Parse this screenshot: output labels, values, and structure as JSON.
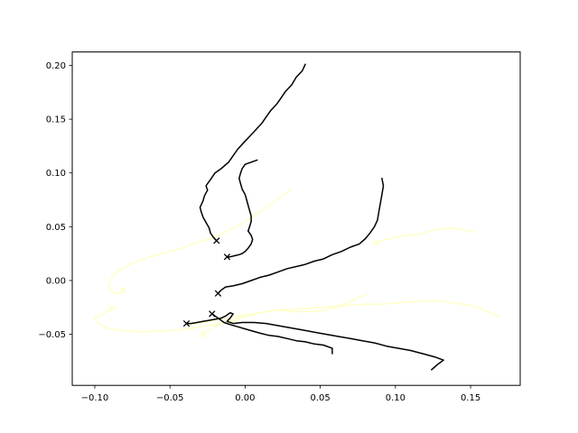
{
  "chart_data": {
    "type": "line",
    "title": "",
    "xlabel": "",
    "ylabel": "",
    "xlim": [
      -0.115,
      0.183
    ],
    "ylim": [
      -0.0975,
      0.2125
    ],
    "grid": false,
    "x_ticks": [
      -0.1,
      -0.05,
      0.0,
      0.05,
      0.1,
      0.15
    ],
    "x_tick_labels": [
      "−0.10",
      "−0.05",
      "0.00",
      "0.05",
      "0.10",
      "0.15"
    ],
    "y_ticks": [
      -0.05,
      0.0,
      0.05,
      0.1,
      0.15,
      0.2
    ],
    "y_tick_labels": [
      "−0.05",
      "0.00",
      "0.05",
      "0.10",
      "0.15",
      "0.20"
    ],
    "colors": {
      "dark": "#000000",
      "light": "#ffffc8",
      "axes": "#000000",
      "background": "#ffffff"
    },
    "series": [
      {
        "color": "dark",
        "end_marker": "x",
        "points": [
          [
            0.04,
            0.201
          ],
          [
            0.038,
            0.195
          ],
          [
            0.034,
            0.189
          ],
          [
            0.031,
            0.182
          ],
          [
            0.027,
            0.176
          ],
          [
            0.024,
            0.17
          ],
          [
            0.021,
            0.164
          ],
          [
            0.017,
            0.158
          ],
          [
            0.014,
            0.152
          ],
          [
            0.011,
            0.146
          ],
          [
            0.007,
            0.14
          ],
          [
            0.003,
            0.134
          ],
          [
            -0.001,
            0.128
          ],
          [
            -0.005,
            0.122
          ],
          [
            -0.008,
            0.116
          ],
          [
            -0.011,
            0.11
          ],
          [
            -0.016,
            0.104
          ],
          [
            -0.02,
            0.1
          ],
          [
            -0.023,
            0.094
          ],
          [
            -0.026,
            0.088
          ],
          [
            -0.025,
            0.084
          ],
          [
            -0.027,
            0.079
          ],
          [
            -0.028,
            0.074
          ],
          [
            -0.03,
            0.068
          ],
          [
            -0.029,
            0.063
          ],
          [
            -0.028,
            0.059
          ],
          [
            -0.026,
            0.054
          ],
          [
            -0.024,
            0.049
          ],
          [
            -0.023,
            0.044
          ],
          [
            -0.021,
            0.04
          ],
          [
            -0.019,
            0.037
          ]
        ]
      },
      {
        "color": "dark",
        "end_marker": "x",
        "points": [
          [
            0.008,
            0.112
          ],
          [
            0.004,
            0.11
          ],
          [
            0.0,
            0.108
          ],
          [
            -0.002,
            0.104
          ],
          [
            -0.003,
            0.1
          ],
          [
            -0.004,
            0.095
          ],
          [
            -0.003,
            0.09
          ],
          [
            -0.002,
            0.085
          ],
          [
            0.0,
            0.08
          ],
          [
            0.001,
            0.075
          ],
          [
            0.002,
            0.07
          ],
          [
            0.003,
            0.065
          ],
          [
            0.004,
            0.06
          ],
          [
            0.004,
            0.055
          ],
          [
            0.003,
            0.05
          ],
          [
            0.002,
            0.046
          ],
          [
            0.004,
            0.042
          ],
          [
            0.005,
            0.038
          ],
          [
            0.004,
            0.034
          ],
          [
            0.002,
            0.03
          ],
          [
            0.0,
            0.027
          ],
          [
            -0.002,
            0.025
          ],
          [
            -0.004,
            0.024
          ],
          [
            -0.007,
            0.023
          ],
          [
            -0.01,
            0.022
          ],
          [
            -0.012,
            0.022
          ]
        ]
      },
      {
        "color": "dark",
        "end_marker": "x",
        "points": [
          [
            0.091,
            0.095
          ],
          [
            0.092,
            0.088
          ],
          [
            0.091,
            0.08
          ],
          [
            0.09,
            0.072
          ],
          [
            0.089,
            0.064
          ],
          [
            0.088,
            0.056
          ],
          [
            0.086,
            0.05
          ],
          [
            0.083,
            0.044
          ],
          [
            0.08,
            0.039
          ],
          [
            0.076,
            0.034
          ],
          [
            0.07,
            0.031
          ],
          [
            0.064,
            0.027
          ],
          [
            0.058,
            0.024
          ],
          [
            0.052,
            0.02
          ],
          [
            0.046,
            0.018
          ],
          [
            0.04,
            0.015
          ],
          [
            0.034,
            0.013
          ],
          [
            0.028,
            0.011
          ],
          [
            0.022,
            0.008
          ],
          [
            0.016,
            0.005
          ],
          [
            0.01,
            0.003
          ],
          [
            0.004,
            0.0
          ],
          [
            -0.002,
            -0.003
          ],
          [
            -0.008,
            -0.005
          ],
          [
            -0.013,
            -0.006
          ],
          [
            -0.016,
            -0.009
          ],
          [
            -0.018,
            -0.012
          ]
        ]
      },
      {
        "color": "dark",
        "end_marker": "x",
        "points": [
          [
            0.124,
            -0.083
          ],
          [
            0.128,
            -0.078
          ],
          [
            0.132,
            -0.074
          ],
          [
            0.126,
            -0.071
          ],
          [
            0.118,
            -0.068
          ],
          [
            0.11,
            -0.065
          ],
          [
            0.102,
            -0.063
          ],
          [
            0.094,
            -0.061
          ],
          [
            0.086,
            -0.058
          ],
          [
            0.078,
            -0.056
          ],
          [
            0.07,
            -0.054
          ],
          [
            0.062,
            -0.052
          ],
          [
            0.054,
            -0.05
          ],
          [
            0.046,
            -0.048
          ],
          [
            0.038,
            -0.046
          ],
          [
            0.03,
            -0.044
          ],
          [
            0.022,
            -0.042
          ],
          [
            0.014,
            -0.04
          ],
          [
            0.006,
            -0.039
          ],
          [
            -0.002,
            -0.039
          ],
          [
            -0.008,
            -0.04
          ],
          [
            -0.012,
            -0.038
          ],
          [
            -0.01,
            -0.035
          ],
          [
            -0.008,
            -0.031
          ],
          [
            -0.01,
            -0.03
          ],
          [
            -0.013,
            -0.033
          ],
          [
            -0.016,
            -0.035
          ],
          [
            -0.02,
            -0.036
          ],
          [
            -0.024,
            -0.037
          ],
          [
            -0.028,
            -0.038
          ],
          [
            -0.032,
            -0.039
          ],
          [
            -0.036,
            -0.04
          ],
          [
            -0.039,
            -0.04
          ]
        ]
      },
      {
        "color": "dark",
        "end_marker": "x",
        "points": [
          [
            0.058,
            -0.068
          ],
          [
            0.058,
            -0.063
          ],
          [
            0.052,
            -0.06
          ],
          [
            0.046,
            -0.059
          ],
          [
            0.04,
            -0.057
          ],
          [
            0.034,
            -0.056
          ],
          [
            0.028,
            -0.054
          ],
          [
            0.022,
            -0.052
          ],
          [
            0.016,
            -0.051
          ],
          [
            0.01,
            -0.049
          ],
          [
            0.005,
            -0.047
          ],
          [
            0.0,
            -0.045
          ],
          [
            -0.005,
            -0.043
          ],
          [
            -0.01,
            -0.041
          ],
          [
            -0.014,
            -0.039
          ],
          [
            -0.018,
            -0.035
          ],
          [
            -0.022,
            -0.031
          ]
        ]
      },
      {
        "color": "light",
        "end_marker": "x",
        "points": [
          [
            0.031,
            0.085
          ],
          [
            0.026,
            0.08
          ],
          [
            0.02,
            0.074
          ],
          [
            0.014,
            0.068
          ],
          [
            0.008,
            0.062
          ],
          [
            0.003,
            0.057
          ],
          [
            -0.003,
            0.052
          ],
          [
            -0.009,
            0.048
          ],
          [
            -0.016,
            0.043
          ],
          [
            -0.023,
            0.039
          ],
          [
            -0.03,
            0.036
          ],
          [
            -0.037,
            0.033
          ],
          [
            -0.044,
            0.029
          ],
          [
            -0.051,
            0.027
          ],
          [
            -0.058,
            0.024
          ],
          [
            -0.065,
            0.021
          ],
          [
            -0.071,
            0.018
          ],
          [
            -0.077,
            0.015
          ],
          [
            -0.083,
            0.01
          ],
          [
            -0.088,
            0.004
          ],
          [
            -0.09,
            -0.002
          ],
          [
            -0.091,
            -0.007
          ],
          [
            -0.089,
            -0.01
          ],
          [
            -0.086,
            -0.012
          ],
          [
            -0.083,
            -0.011
          ],
          [
            -0.081,
            -0.009
          ]
        ]
      },
      {
        "color": "light",
        "end_marker": "x",
        "points": [
          [
            0.153,
            0.045
          ],
          [
            0.145,
            0.047
          ],
          [
            0.137,
            0.049
          ],
          [
            0.13,
            0.048
          ],
          [
            0.123,
            0.046
          ],
          [
            0.116,
            0.043
          ],
          [
            0.109,
            0.042
          ],
          [
            0.102,
            0.041
          ],
          [
            0.096,
            0.039
          ],
          [
            0.09,
            0.037
          ],
          [
            0.087,
            0.035
          ]
        ]
      },
      {
        "color": "light",
        "end_marker": "x",
        "points": [
          [
            0.17,
            -0.034
          ],
          [
            0.16,
            -0.028
          ],
          [
            0.15,
            -0.023
          ],
          [
            0.14,
            -0.021
          ],
          [
            0.13,
            -0.019
          ],
          [
            0.12,
            -0.019
          ],
          [
            0.11,
            -0.02
          ],
          [
            0.1,
            -0.021
          ],
          [
            0.09,
            -0.022
          ],
          [
            0.08,
            -0.022
          ],
          [
            0.07,
            -0.023
          ],
          [
            0.06,
            -0.024
          ],
          [
            0.05,
            -0.025
          ],
          [
            0.04,
            -0.026
          ],
          [
            0.03,
            -0.027
          ],
          [
            0.02,
            -0.028
          ],
          [
            0.01,
            -0.03
          ],
          [
            0.0,
            -0.032
          ],
          [
            -0.008,
            -0.034
          ],
          [
            -0.016,
            -0.036
          ],
          [
            -0.024,
            -0.038
          ],
          [
            -0.032,
            -0.04
          ],
          [
            -0.036,
            -0.041
          ]
        ]
      },
      {
        "color": "light",
        "end_marker": "x",
        "points": [
          [
            0.082,
            -0.012
          ],
          [
            0.074,
            -0.017
          ],
          [
            0.066,
            -0.022
          ],
          [
            0.058,
            -0.026
          ],
          [
            0.05,
            -0.028
          ],
          [
            0.042,
            -0.029
          ],
          [
            0.034,
            -0.029
          ],
          [
            0.026,
            -0.028
          ],
          [
            0.018,
            -0.028
          ],
          [
            0.01,
            -0.03
          ],
          [
            0.002,
            -0.033
          ],
          [
            -0.006,
            -0.036
          ],
          [
            -0.014,
            -0.039
          ],
          [
            -0.02,
            -0.043
          ],
          [
            -0.025,
            -0.047
          ],
          [
            -0.028,
            -0.05
          ]
        ]
      },
      {
        "color": "light",
        "end_marker": "x",
        "points": [
          [
            -0.005,
            -0.037
          ],
          [
            -0.013,
            -0.039
          ],
          [
            -0.021,
            -0.041
          ],
          [
            -0.029,
            -0.043
          ],
          [
            -0.037,
            -0.045
          ],
          [
            -0.045,
            -0.046
          ],
          [
            -0.053,
            -0.047
          ],
          [
            -0.061,
            -0.047
          ],
          [
            -0.069,
            -0.048
          ],
          [
            -0.077,
            -0.047
          ],
          [
            -0.085,
            -0.046
          ],
          [
            -0.092,
            -0.044
          ],
          [
            -0.098,
            -0.04
          ],
          [
            -0.1,
            -0.035
          ],
          [
            -0.096,
            -0.032
          ],
          [
            -0.092,
            -0.029
          ],
          [
            -0.089,
            -0.026
          ],
          [
            -0.088,
            -0.026
          ]
        ]
      }
    ]
  }
}
